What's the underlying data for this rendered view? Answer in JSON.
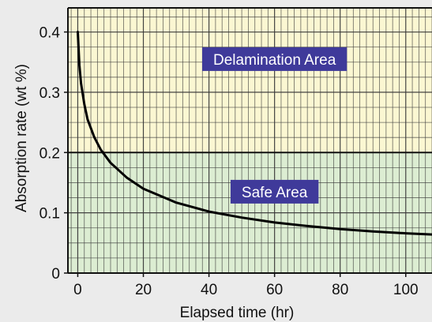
{
  "chart_data": {
    "type": "line",
    "xlabel": "Elapsed time (hr)",
    "ylabel": "Absorption rate (wt %)",
    "xlim": [
      -3,
      108
    ],
    "ylim": [
      0,
      0.44
    ],
    "x_ticks": [
      0,
      20,
      40,
      60,
      80,
      100
    ],
    "y_ticks": [
      0,
      0.1,
      0.2,
      0.3,
      0.4
    ],
    "x_tick_labels": [
      "0",
      "20",
      "40",
      "60",
      "80",
      "100"
    ],
    "y_tick_labels": [
      "0",
      "0.1",
      "0.2",
      "0.3",
      "0.4"
    ],
    "grid": true,
    "zones": [
      {
        "label": "Delamination Area",
        "y_from": 0.2,
        "y_to": 0.44,
        "color": "#fbf7d2",
        "label_x": 60,
        "label_y": 0.355
      },
      {
        "label": "Safe Area",
        "y_from": 0,
        "y_to": 0.2,
        "color": "#dcedd2",
        "label_x": 60,
        "label_y": 0.135
      }
    ],
    "threshold": 0.2,
    "series": [
      {
        "x": [
          0,
          0.5,
          1,
          2,
          3,
          5,
          7,
          10,
          15,
          20,
          30,
          40,
          50,
          60,
          70,
          80,
          90,
          100,
          108
        ],
        "y": [
          0.4,
          0.345,
          0.315,
          0.28,
          0.255,
          0.226,
          0.205,
          0.183,
          0.158,
          0.14,
          0.117,
          0.102,
          0.092,
          0.084,
          0.078,
          0.073,
          0.069,
          0.066,
          0.064
        ],
        "color": "#000000"
      }
    ],
    "colors": {
      "grid": "#3a3a3a",
      "label_box": "#3f3a9a",
      "page_background": "#ebebeb"
    }
  }
}
